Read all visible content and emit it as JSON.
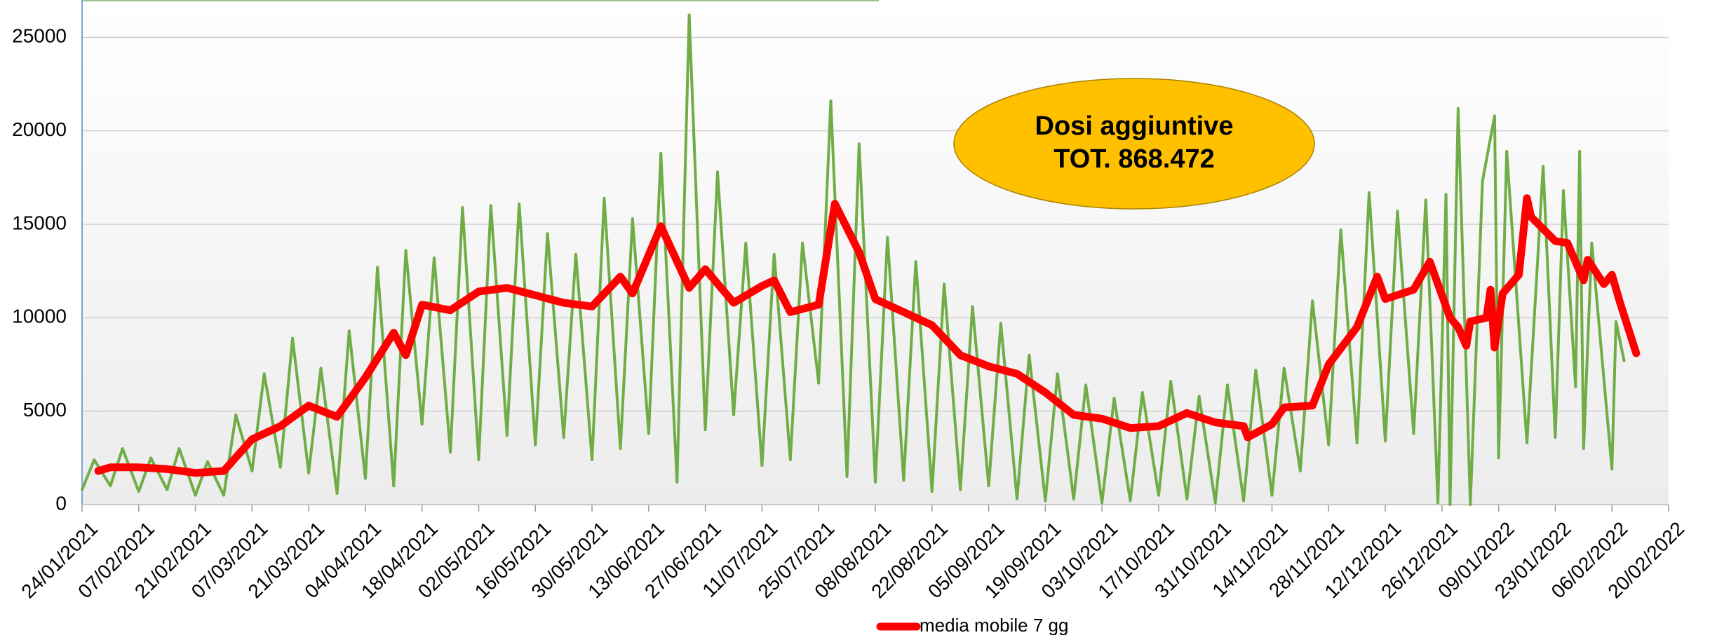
{
  "chart_data": {
    "type": "line",
    "annotations": [
      "Dosi aggiuntive",
      "TOT. 868.472"
    ],
    "ylim": [
      0,
      27000
    ],
    "yticks": [
      0,
      5000,
      10000,
      15000,
      20000,
      25000
    ],
    "grid": true,
    "xlim": [
      "24/01/2021",
      "20/02/2022"
    ],
    "xticks": [
      "24/01/2021",
      "07/02/2021",
      "21/02/2021",
      "07/03/2021",
      "21/03/2021",
      "04/04/2021",
      "18/04/2021",
      "02/05/2021",
      "16/05/2021",
      "30/05/2021",
      "13/06/2021",
      "27/06/2021",
      "11/07/2021",
      "25/07/2021",
      "08/08/2021",
      "22/08/2021",
      "05/09/2021",
      "19/09/2021",
      "03/10/2021",
      "17/10/2021",
      "31/10/2021",
      "14/11/2021",
      "28/11/2021",
      "12/12/2021",
      "26/12/2021",
      "09/01/2022",
      "23/01/2022",
      "06/02/2022",
      "20/02/2022"
    ],
    "legend": "bottom",
    "series": [
      {
        "color": "#70ad47",
        "x": [
          "24/01/2021",
          "27/01/2021",
          "31/01/2021",
          "03/02/2021",
          "07/02/2021",
          "10/02/2021",
          "14/02/2021",
          "17/02/2021",
          "21/02/2021",
          "24/02/2021",
          "28/02/2021",
          "03/03/2021",
          "07/03/2021",
          "10/03/2021",
          "14/03/2021",
          "17/03/2021",
          "21/03/2021",
          "24/03/2021",
          "28/03/2021",
          "31/03/2021",
          "04/04/2021",
          "07/04/2021",
          "11/04/2021",
          "14/04/2021",
          "18/04/2021",
          "21/04/2021",
          "25/04/2021",
          "28/04/2021",
          "02/05/2021",
          "05/05/2021",
          "09/05/2021",
          "12/05/2021",
          "16/05/2021",
          "19/05/2021",
          "23/05/2021",
          "26/05/2021",
          "30/05/2021",
          "02/06/2021",
          "06/06/2021",
          "09/06/2021",
          "13/06/2021",
          "16/06/2021",
          "20/06/2021",
          "23/06/2021",
          "27/06/2021",
          "30/06/2021",
          "04/07/2021",
          "07/07/2021",
          "11/07/2021",
          "14/07/2021",
          "18/07/2021",
          "21/07/2021",
          "25/07/2021",
          "28/07/2021",
          "01/08/2021",
          "04/08/2021",
          "08/08/2021",
          "11/08/2021",
          "15/08/2021",
          "18/08/2021",
          "22/08/2021",
          "25/08/2021",
          "29/08/2021",
          "01/09/2021",
          "05/09/2021",
          "08/09/2021",
          "12/09/2021",
          "15/09/2021",
          "19/09/2021",
          "22/09/2021",
          "26/09/2021",
          "29/09/2021",
          "03/10/2021",
          "06/10/2021",
          "10/10/2021",
          "13/10/2021",
          "17/10/2021",
          "20/10/2021",
          "24/10/2021",
          "27/10/2021",
          "31/10/2021",
          "03/11/2021",
          "07/11/2021",
          "10/11/2021",
          "14/11/2021",
          "17/11/2021",
          "21/11/2021",
          "24/11/2021",
          "28/11/2021",
          "01/12/2021",
          "05/12/2021",
          "08/12/2021",
          "12/12/2021",
          "15/12/2021",
          "19/12/2021",
          "22/12/2021",
          "25/12/2021",
          "27/12/2021",
          "28/12/2021",
          "30/12/2021",
          "02/01/2022",
          "05/01/2022",
          "08/01/2022",
          "09/01/2022",
          "11/01/2022",
          "16/01/2022",
          "20/01/2022",
          "23/01/2022",
          "25/01/2022",
          "28/01/2022",
          "29/01/2022",
          "30/01/2022",
          "01/02/2022",
          "06/02/2022",
          "07/02/2022",
          "09/02/2022"
        ],
        "values": [
          800,
          2400,
          1000,
          3000,
          700,
          2500,
          800,
          3000,
          500,
          2300,
          500,
          4800,
          1800,
          7000,
          2000,
          8900,
          1700,
          7300,
          600,
          9300,
          1400,
          12700,
          1000,
          13600,
          4300,
          13200,
          2800,
          15900,
          2400,
          16000,
          3700,
          16100,
          3200,
          14500,
          3600,
          13400,
          2400,
          16400,
          3000,
          15300,
          3800,
          18800,
          1200,
          26200,
          4000,
          17800,
          4800,
          14000,
          2100,
          13400,
          2400,
          14000,
          6500,
          21600,
          1500,
          19300,
          1200,
          14300,
          1300,
          13000,
          700,
          11800,
          800,
          10600,
          1000,
          9700,
          300,
          8000,
          200,
          7000,
          300,
          6400,
          100,
          5700,
          200,
          6000,
          500,
          6600,
          300,
          5800,
          100,
          6400,
          200,
          7200,
          500,
          7300,
          1800,
          10900,
          3200,
          14700,
          3300,
          16700,
          3400,
          15700,
          3800,
          16300,
          100,
          16600,
          0,
          21200,
          0,
          17300,
          20800,
          2500,
          18900,
          3300,
          18100,
          3600,
          16800,
          6300,
          18900,
          3000,
          14000,
          1900,
          9800,
          7700
        ]
      },
      {
        "name": "media mobile 7 gg",
        "color": "#ff0000",
        "x": [
          "28/01/2021",
          "31/01/2021",
          "07/02/2021",
          "14/02/2021",
          "21/02/2021",
          "28/02/2021",
          "07/03/2021",
          "14/03/2021",
          "21/03/2021",
          "28/03/2021",
          "04/04/2021",
          "11/04/2021",
          "14/04/2021",
          "18/04/2021",
          "25/04/2021",
          "02/05/2021",
          "09/05/2021",
          "16/05/2021",
          "23/05/2021",
          "30/05/2021",
          "06/06/2021",
          "09/06/2021",
          "16/06/2021",
          "23/06/2021",
          "27/06/2021",
          "04/07/2021",
          "11/07/2021",
          "14/07/2021",
          "18/07/2021",
          "25/07/2021",
          "29/07/2021",
          "04/08/2021",
          "08/08/2021",
          "15/08/2021",
          "22/08/2021",
          "29/08/2021",
          "05/09/2021",
          "12/09/2021",
          "19/09/2021",
          "26/09/2021",
          "03/10/2021",
          "10/10/2021",
          "17/10/2021",
          "24/10/2021",
          "31/10/2021",
          "07/11/2021",
          "08/11/2021",
          "14/11/2021",
          "17/11/2021",
          "24/11/2021",
          "28/11/2021",
          "05/12/2021",
          "10/12/2021",
          "12/12/2021",
          "19/12/2021",
          "23/12/2021",
          "28/12/2021",
          "30/12/2021",
          "01/01/2022",
          "02/01/2022",
          "06/01/2022",
          "07/01/2022",
          "08/01/2022",
          "10/01/2022",
          "14/01/2022",
          "16/01/2022",
          "17/01/2022",
          "23/01/2022",
          "26/01/2022",
          "30/01/2022",
          "31/01/2022",
          "04/02/2022",
          "06/02/2022",
          "08/02/2022",
          "12/02/2022"
        ],
        "values": [
          1800,
          2000,
          2000,
          1900,
          1700,
          1800,
          3500,
          4200,
          5300,
          4700,
          6800,
          9200,
          8000,
          10700,
          10400,
          11400,
          11600,
          11200,
          10800,
          10600,
          12200,
          11300,
          14900,
          11600,
          12600,
          10800,
          11700,
          12000,
          10300,
          10700,
          16100,
          13500,
          11000,
          10300,
          9600,
          8000,
          7400,
          7000,
          6000,
          4800,
          4600,
          4100,
          4200,
          4900,
          4400,
          4200,
          3600,
          4300,
          5200,
          5300,
          7500,
          9500,
          12200,
          11000,
          11500,
          13000,
          10000,
          9500,
          8500,
          9800,
          10000,
          11500,
          8400,
          11300,
          12300,
          16400,
          15400,
          14100,
          14000,
          12000,
          13100,
          11800,
          12300,
          10800,
          8100
        ]
      }
    ]
  }
}
